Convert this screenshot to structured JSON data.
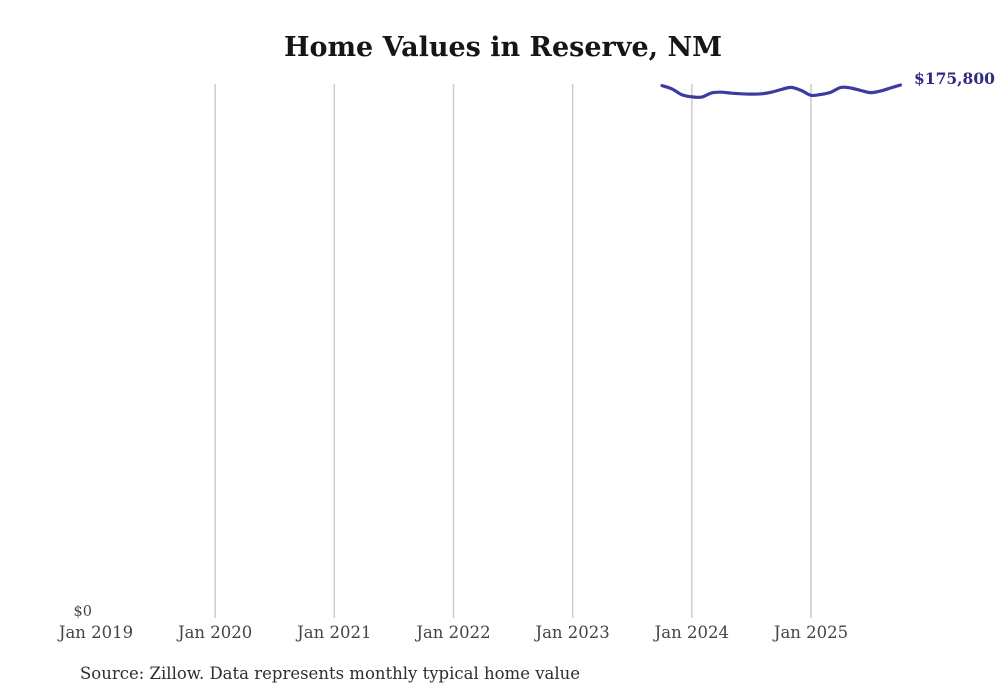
{
  "chart_data": {
    "type": "line",
    "title": "Home Values in Reserve, NM",
    "source_note": "Source: Zillow. Data represents monthly typical home value",
    "end_label": "$175,800",
    "latest_value": 175800,
    "line_color": "#3f3aa0",
    "end_label_color": "#2f2c80",
    "gridline_color": "#cccccc",
    "background_color": "#ffffff",
    "grid": "vertical-only",
    "legend": "none",
    "x_axis": {
      "tick_labels": [
        "Jan 2019",
        "Jan 2020",
        "Jan 2021",
        "Jan 2022",
        "Jan 2023",
        "Jan 2024",
        "Jan 2025"
      ],
      "first_gridline_index": 1,
      "range": [
        "Jan 2019",
        "Dec 2025"
      ]
    },
    "y_axis": {
      "zero_label": "$0",
      "min": 0,
      "max": 180000
    },
    "series": [
      {
        "name": "Monthly typical home value",
        "months": [
          "2023-10",
          "2023-11",
          "2023-12",
          "2024-01",
          "2024-02",
          "2024-03",
          "2024-04",
          "2024-05",
          "2024-06",
          "2024-07",
          "2024-08",
          "2024-09",
          "2024-10",
          "2024-11",
          "2024-12",
          "2025-01",
          "2025-02",
          "2025-03",
          "2025-04",
          "2025-05",
          "2025-06",
          "2025-07",
          "2025-08",
          "2025-09",
          "2025-10"
        ],
        "values": [
          175600,
          174500,
          172600,
          171900,
          171800,
          173200,
          173400,
          173100,
          172900,
          172800,
          172900,
          173400,
          174300,
          175000,
          174000,
          172400,
          172700,
          173400,
          175000,
          174800,
          174000,
          173300,
          173800,
          174800,
          175800
        ]
      }
    ]
  }
}
